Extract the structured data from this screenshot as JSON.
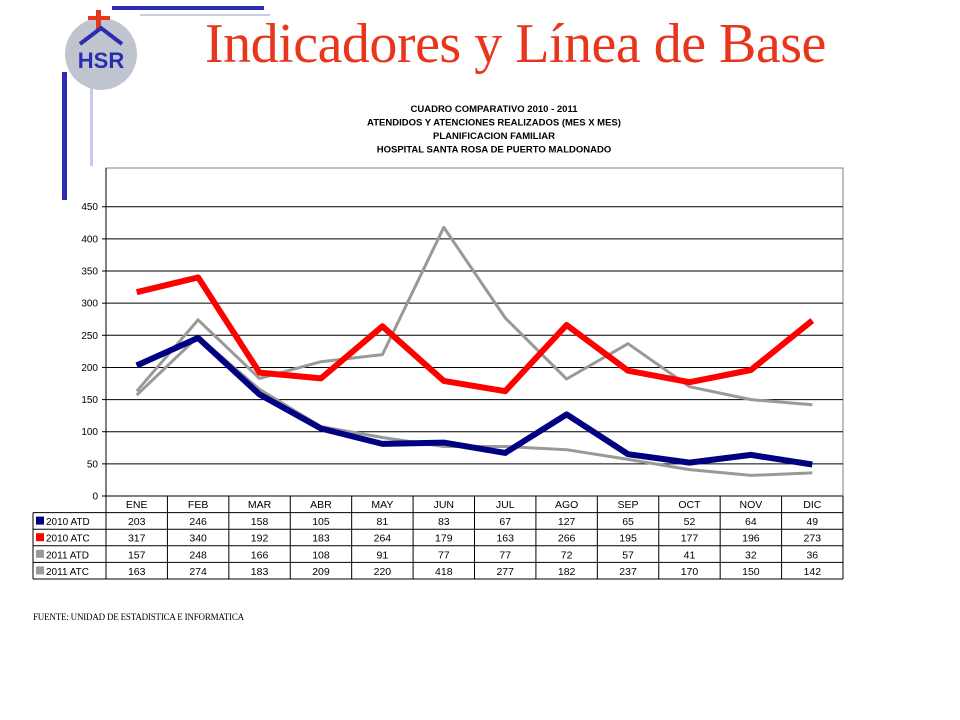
{
  "page": {
    "title": "Indicadores y Línea de Base",
    "logo_text": "HSR",
    "footer": "FUENTE: UNIDAD DE ESTADISTICA E INFORMATICA",
    "colors": {
      "title": "#e8361c",
      "decor_blue": "#2b2db0",
      "decor_light": "#c8c8f0",
      "cross": "#e8361c"
    }
  },
  "chart_data": {
    "type": "line",
    "title": [
      "CUADRO COMPARATIVO 2010 - 2011",
      "ATENDIDOS Y ATENCIONES  REALIZADOS (MES X MES)",
      "PLANIFICACION FAMILIAR",
      "HOSPITAL  SANTA ROSA DE PUERTO MALDONADO"
    ],
    "categories": [
      "ENE",
      "FEB",
      "MAR",
      "ABR",
      "MAY",
      "JUN",
      "JUL",
      "AGO",
      "SEP",
      "OCT",
      "NOV",
      "DIC"
    ],
    "ylim": [
      0,
      450
    ],
    "yticks": [
      0,
      50,
      100,
      150,
      200,
      250,
      300,
      350,
      400,
      450
    ],
    "legend": "data-table",
    "grid": true,
    "series": [
      {
        "name": "2010 ATD",
        "color": "#000080",
        "values": [
          203,
          246,
          158,
          105,
          81,
          83,
          67,
          127,
          65,
          52,
          64,
          49
        ]
      },
      {
        "name": "2010 ATC",
        "color": "#ff0000",
        "values": [
          317,
          340,
          192,
          183,
          264,
          179,
          163,
          266,
          195,
          177,
          196,
          273
        ]
      },
      {
        "name": "2011 ATD",
        "color": "#999999",
        "values": [
          157,
          248,
          166,
          108,
          91,
          77,
          77,
          72,
          57,
          41,
          32,
          36
        ]
      },
      {
        "name": "2011 ATC",
        "color": "#999999",
        "values": [
          163,
          274,
          183,
          209,
          220,
          418,
          277,
          182,
          237,
          170,
          150,
          142
        ]
      }
    ]
  }
}
